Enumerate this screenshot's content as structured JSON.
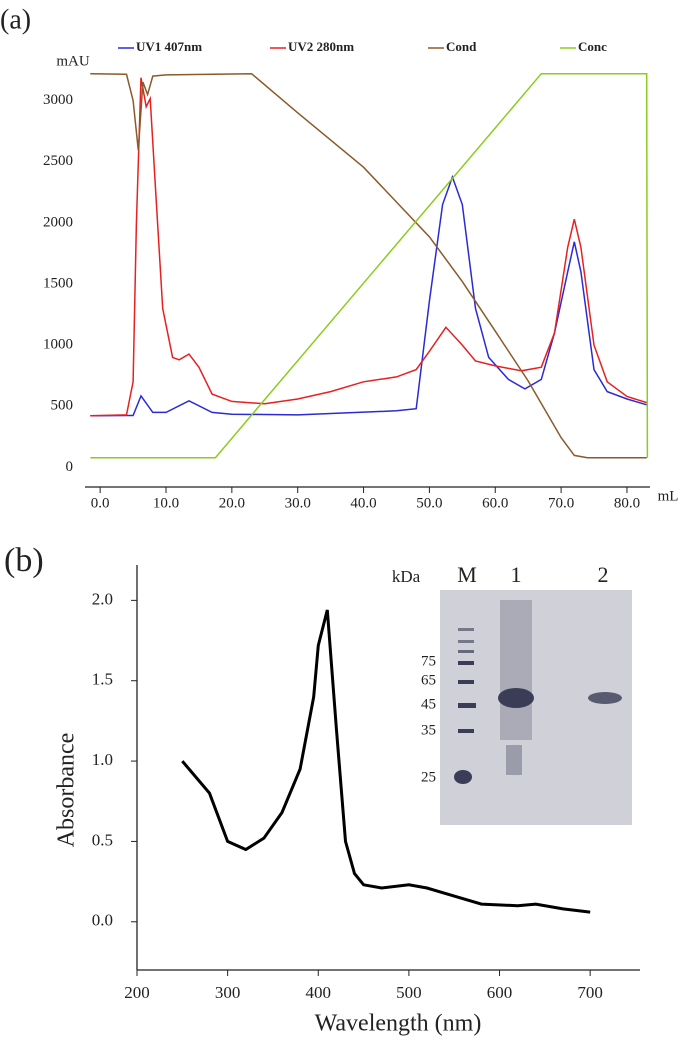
{
  "chart_data": [
    {
      "type": "line",
      "panel_label": "(a)",
      "xlabel": "mL",
      "ylabel": "mAU",
      "xlim": [
        -2.3,
        83.5
      ],
      "ylim": [
        -160,
        3250
      ],
      "xticks": [
        {
          "value": 0,
          "label": "0.0"
        },
        {
          "value": 10,
          "label": "10.0"
        },
        {
          "value": 20,
          "label": "20.0"
        },
        {
          "value": 30,
          "label": "30.0"
        },
        {
          "value": 40,
          "label": "40.0"
        },
        {
          "value": 50,
          "label": "50.0"
        },
        {
          "value": 60,
          "label": "60.0"
        },
        {
          "value": 70,
          "label": "70.0"
        },
        {
          "value": 80,
          "label": "80.0"
        }
      ],
      "yticks": [
        0,
        500,
        1000,
        1500,
        2000,
        2500,
        3000
      ],
      "series": [
        {
          "name": "UV1 407nm",
          "color": "#2a2ad6",
          "x": [
            -1.5,
            5,
            6.2,
            8,
            10,
            13.5,
            17,
            20,
            30,
            45,
            48,
            50,
            52,
            53.5,
            55,
            57,
            59,
            62,
            64.5,
            67,
            69,
            71,
            72,
            73,
            75,
            77,
            80,
            83
          ],
          "values": [
            423,
            425,
            585,
            450,
            450,
            545,
            450,
            435,
            430,
            463,
            480,
            1360,
            2150,
            2375,
            2150,
            1300,
            900,
            720,
            642,
            720,
            1100,
            1600,
            1845,
            1600,
            800,
            620,
            560,
            512
          ]
        },
        {
          "name": "UV2 280nm",
          "color": "#e82020",
          "x": [
            -1.5,
            4,
            5,
            5.5,
            6.2,
            7,
            7.6,
            8.5,
            9.5,
            11,
            12,
            13.5,
            15,
            17,
            20,
            25,
            30,
            35,
            40,
            45,
            48,
            50,
            52.5,
            55,
            57,
            60,
            64,
            67,
            69,
            71,
            72,
            73,
            75,
            77,
            80,
            83
          ],
          "values": [
            423,
            430,
            700,
            2000,
            3187,
            2950,
            3016,
            2200,
            1300,
            900,
            880,
            927,
            820,
            600,
            540,
            520,
            560,
            620,
            700,
            740,
            800,
            950,
            1146,
            1000,
            870,
            830,
            790,
            820,
            1100,
            1800,
            2030,
            1800,
            1000,
            700,
            580,
            530
          ]
        },
        {
          "name": "Cond",
          "color": "#8b5a2b",
          "x": [
            -1.5,
            4,
            5,
            5.8,
            6.5,
            7.2,
            8,
            10,
            23,
            30,
            40,
            50,
            55,
            60,
            65,
            70,
            72,
            74,
            83
          ],
          "values": [
            3220,
            3215,
            3000,
            2594,
            3150,
            3050,
            3200,
            3210,
            3220,
            2900,
            2455,
            1886,
            1520,
            1114,
            707,
            244,
            98,
            80,
            80
          ]
        },
        {
          "name": "Conc",
          "color": "#8ccc1e",
          "x": [
            -1.5,
            17.5,
            67,
            83,
            83.1
          ],
          "values": [
            80,
            80,
            3220,
            3220,
            80
          ]
        }
      ]
    },
    {
      "type": "line",
      "panel_label": "(b)",
      "xlabel": "Wavelength (nm)",
      "ylabel": "Absorbance",
      "color": "#000000",
      "xlim": [
        200,
        755
      ],
      "ylim": [
        -0.3,
        2.22
      ],
      "xticks": [
        200,
        300,
        400,
        500,
        600,
        700
      ],
      "yticks": [
        {
          "value": 0,
          "label": "0.0"
        },
        0.5,
        {
          "value": 1,
          "label": "1.0"
        },
        1.5,
        {
          "value": 2,
          "label": "2.0"
        }
      ],
      "x": [
        250,
        280,
        300,
        320,
        340,
        360,
        380,
        395,
        400,
        410,
        420,
        430,
        440,
        450,
        470,
        500,
        520,
        550,
        580,
        620,
        640,
        670,
        700
      ],
      "values": [
        1.0,
        0.8,
        0.5,
        0.45,
        0.52,
        0.68,
        0.95,
        1.4,
        1.72,
        1.94,
        1.2,
        0.5,
        0.3,
        0.23,
        0.21,
        0.23,
        0.21,
        0.16,
        0.11,
        0.1,
        0.11,
        0.08,
        0.06
      ],
      "inset": {
        "unit": "kDa",
        "lanes": [
          "M",
          "1",
          "2"
        ],
        "markers": [
          75,
          65,
          45,
          35,
          25
        ]
      }
    }
  ]
}
